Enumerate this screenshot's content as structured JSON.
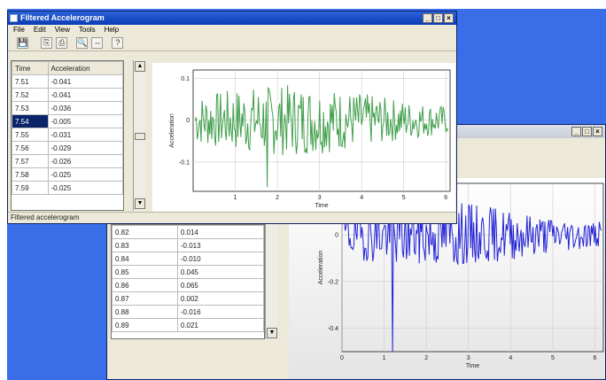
{
  "back_window": {
    "title_buttons": [
      "_",
      "□",
      "×"
    ],
    "grid_rows": [
      {
        "time": "0.82",
        "acc": "0.014"
      },
      {
        "time": "0.83",
        "acc": "-0.013"
      },
      {
        "time": "0.84",
        "acc": "-0.010"
      },
      {
        "time": "0.85",
        "acc": "0.045"
      },
      {
        "time": "0.86",
        "acc": "0.065"
      },
      {
        "time": "0.87",
        "acc": "0.002"
      },
      {
        "time": "0.88",
        "acc": "-0.016"
      },
      {
        "time": "0.89",
        "acc": "0.021"
      }
    ],
    "scroll_down": "▼",
    "chart_data": {
      "type": "line",
      "xlabel": "Time",
      "ylabel": "Acceleration",
      "xlim": [
        0,
        6.2
      ],
      "ylim": [
        -0.5,
        0.22
      ],
      "x_ticks": [
        0,
        1,
        2,
        3,
        4,
        5,
        6
      ],
      "y_ticks": [
        -0.4,
        -0.2,
        0
      ],
      "series_color": "#2323d6",
      "spike": {
        "x": 1.2,
        "y": -0.5
      }
    }
  },
  "front_window": {
    "title": "Filtered Accelerogram",
    "title_buttons": [
      "_",
      "□",
      "×"
    ],
    "menu": [
      "File",
      "Edit",
      "View",
      "Tools",
      "Help"
    ],
    "toolbar_icons": [
      {
        "name": "save-icon",
        "glyph": "💾"
      },
      {
        "name": "copy-icon",
        "glyph": "⎘"
      },
      {
        "name": "print-icon",
        "glyph": "⎙"
      },
      {
        "name": "zoom-icon",
        "glyph": "🔍"
      },
      {
        "name": "pan-icon",
        "glyph": "⇔"
      },
      {
        "name": "help-icon",
        "glyph": "?"
      }
    ],
    "grid_headers": [
      "Time",
      "Acceleration"
    ],
    "grid_rows": [
      {
        "time": "7.51",
        "acc": "-0.041"
      },
      {
        "time": "7.52",
        "acc": "-0.041"
      },
      {
        "time": "7.53",
        "acc": "-0.036"
      },
      {
        "time": "7.54",
        "acc": "-0.005",
        "selected": true
      },
      {
        "time": "7.55",
        "acc": "-0.031"
      },
      {
        "time": "7.56",
        "acc": "-0.029"
      },
      {
        "time": "7.57",
        "acc": "-0.026"
      },
      {
        "time": "7.58",
        "acc": "-0.025"
      },
      {
        "time": "7.59",
        "acc": "-0.025"
      }
    ],
    "scroll_up": "▲",
    "scroll_down": "▼",
    "status": "Filtered accelerogram",
    "chart_data": {
      "type": "line",
      "xlabel": "Time",
      "ylabel": "Acceleration",
      "xlim": [
        0,
        6.1
      ],
      "ylim": [
        -0.17,
        0.12
      ],
      "x_ticks": [
        1,
        2,
        3,
        4,
        5,
        6
      ],
      "y_ticks": [
        -0.1,
        0,
        0.1
      ],
      "series_color": "#3f9e4a",
      "spike": {
        "x": 1.75,
        "y": -0.16
      }
    }
  }
}
